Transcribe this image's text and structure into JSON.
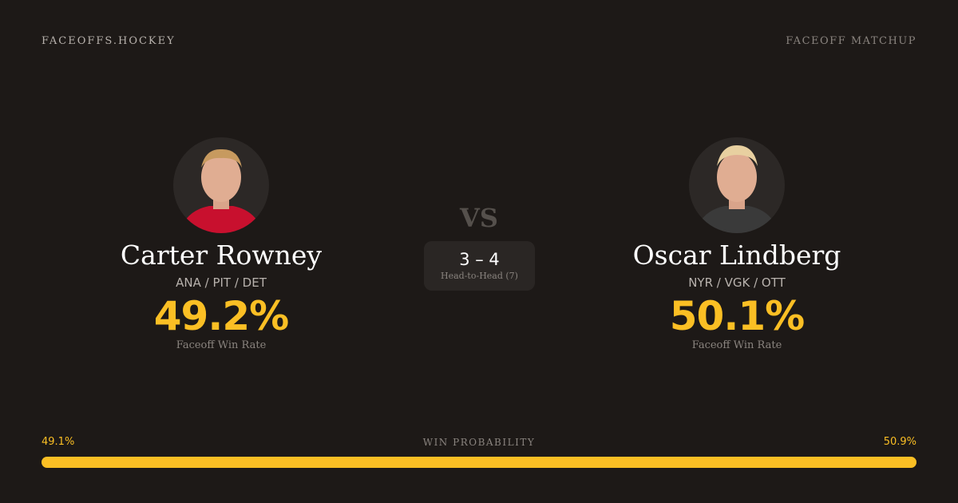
{
  "header": {
    "brand": "FACEOFFS.HOCKEY",
    "tag": "FACEOFF MATCHUP"
  },
  "players": [
    {
      "name": "Carter Rowney",
      "teams": "ANA / PIT / DET",
      "win_rate": "49.2%",
      "win_rate_label": "Faceoff Win Rate",
      "jersey_color": "#c8102e"
    },
    {
      "name": "Oscar Lindberg",
      "teams": "NYR / VGK / OTT",
      "win_rate": "50.1%",
      "win_rate_label": "Faceoff Win Rate",
      "jersey_color": "#3a3a3a"
    }
  ],
  "vs": "VS",
  "head_to_head": {
    "score": "3 – 4",
    "label": "Head-to-Head (7)"
  },
  "win_probability": {
    "title": "WIN PROBABILITY",
    "left": "49.1%",
    "right": "50.9%",
    "left_value": 49.1,
    "right_value": 50.9,
    "left_color": "#fbbf24",
    "right_color": "#fbbf24"
  }
}
